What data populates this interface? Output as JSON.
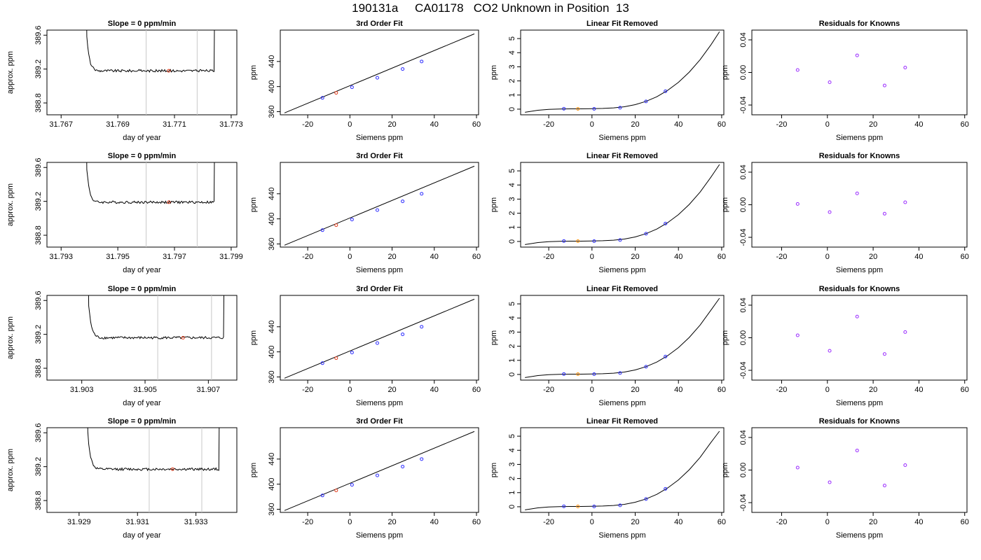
{
  "figure": {
    "title": "190131a     CA01178   CO2 Unknown in Position  13",
    "colors": {
      "known_point": "#2b2bff",
      "unknown_point": "#e03a1a",
      "unknown_point_linfit": "#ff8c00",
      "residual_point": "#9a2bff",
      "trace": "#000000",
      "window_line": "#c8c8c8"
    }
  },
  "chart_data": [
    {
      "row": 1,
      "type": "line",
      "title": "Slope =  0  ppm/min",
      "xlabel": "day of year",
      "ylabel": "approx. ppm",
      "xlim": [
        31.7665,
        31.7732
      ],
      "ylim": [
        388.66,
        389.66
      ],
      "xticks": [
        "31.767",
        "31.769",
        "31.771",
        "31.773"
      ],
      "yticks": [
        "388.8",
        "389.2",
        "389.6"
      ],
      "window": [
        31.77,
        31.7718
      ],
      "mean_point": {
        "x": 31.7708,
        "y": 389.18
      },
      "signal_start": 31.7681,
      "signal_end": 31.7724,
      "baseline": 389.18,
      "noise": 0.015
    },
    {
      "row": 1,
      "type": "line",
      "title": "3rd Order Fit",
      "xlabel": "Siemens ppm",
      "ylabel": "ppm",
      "xlim": [
        -33,
        61
      ],
      "ylim": [
        355,
        490
      ],
      "xticks": [
        "-20",
        "0",
        "20",
        "40",
        "60"
      ],
      "yticks": [
        "360",
        "400",
        "440"
      ],
      "fit_line": {
        "x": [
          -31,
          59
        ],
        "y": [
          358,
          484
        ]
      },
      "knowns": [
        {
          "x": -13,
          "y": 382
        },
        {
          "x": 1,
          "y": 399
        },
        {
          "x": 13,
          "y": 414
        },
        {
          "x": 25,
          "y": 428
        },
        {
          "x": 34,
          "y": 440
        }
      ],
      "unknown": {
        "x": -6.5,
        "y": 390
      }
    },
    {
      "row": 1,
      "type": "line",
      "title": "Linear Fit Removed",
      "xlabel": "Siemens ppm",
      "ylabel": "ppm",
      "xlim": [
        -33,
        61
      ],
      "ylim": [
        -0.4,
        5.6
      ],
      "xticks": [
        "-20",
        "0",
        "20",
        "40",
        "60"
      ],
      "yticks": [
        "0",
        "1",
        "2",
        "3",
        "4",
        "5"
      ],
      "curve": {
        "x": [
          -31,
          -25,
          -20,
          -15,
          -10,
          -5,
          0,
          5,
          10,
          15,
          20,
          25,
          30,
          35,
          40,
          45,
          50,
          55,
          59
        ],
        "y": [
          -0.22,
          -0.08,
          -0.02,
          0.01,
          0.02,
          0.02,
          0.03,
          0.05,
          0.09,
          0.17,
          0.32,
          0.55,
          0.88,
          1.33,
          1.9,
          2.62,
          3.5,
          4.55,
          5.48
        ]
      },
      "knowns": [
        {
          "x": -13,
          "y": 0.03
        },
        {
          "x": 1,
          "y": 0.02
        },
        {
          "x": 13,
          "y": 0.1
        },
        {
          "x": 25,
          "y": 0.55
        },
        {
          "x": 34,
          "y": 1.27
        }
      ],
      "unknown": {
        "x": -6.5,
        "y": 0.02
      }
    },
    {
      "row": 1,
      "type": "scatter",
      "title": "Residuals for Knowns",
      "xlabel": "Siemens ppm",
      "ylabel": "ppm",
      "xlim": [
        -33,
        61
      ],
      "ylim": [
        -0.052,
        0.052
      ],
      "xticks": [
        "-20",
        "0",
        "20",
        "40",
        "60"
      ],
      "yticks": [
        "-0.04",
        "0.00",
        "0.04"
      ],
      "points": [
        {
          "x": -13,
          "y": 0.003
        },
        {
          "x": 1,
          "y": -0.012
        },
        {
          "x": 13,
          "y": 0.021
        },
        {
          "x": 25,
          "y": -0.016
        },
        {
          "x": 34,
          "y": 0.006
        }
      ]
    },
    {
      "row": 2,
      "type": "line",
      "title": "Slope =  0  ppm/min",
      "xlabel": "day of year",
      "ylabel": "approx. ppm",
      "xlim": [
        31.7925,
        31.7992
      ],
      "ylim": [
        388.66,
        389.66
      ],
      "xticks": [
        "31.793",
        "31.795",
        "31.797",
        "31.799"
      ],
      "yticks": [
        "388.8",
        "389.2",
        "389.6"
      ],
      "window": [
        31.796,
        31.7978
      ],
      "mean_point": {
        "x": 31.7968,
        "y": 389.19
      },
      "signal_start": 31.7941,
      "signal_end": 31.7984,
      "baseline": 389.19,
      "noise": 0.015
    },
    {
      "row": 2,
      "type": "line",
      "title": "3rd Order Fit",
      "xlabel": "Siemens ppm",
      "ylabel": "ppm",
      "xlim": [
        -33,
        61
      ],
      "ylim": [
        355,
        490
      ],
      "xticks": [
        "-20",
        "0",
        "20",
        "40",
        "60"
      ],
      "yticks": [
        "360",
        "400",
        "440"
      ],
      "fit_line": {
        "x": [
          -31,
          59
        ],
        "y": [
          358,
          484
        ]
      },
      "knowns": [
        {
          "x": -13,
          "y": 382
        },
        {
          "x": 1,
          "y": 399
        },
        {
          "x": 13,
          "y": 414
        },
        {
          "x": 25,
          "y": 428
        },
        {
          "x": 34,
          "y": 440
        }
      ],
      "unknown": {
        "x": -6.5,
        "y": 390
      }
    },
    {
      "row": 2,
      "type": "line",
      "title": "Linear Fit Removed",
      "xlabel": "Siemens ppm",
      "ylabel": "ppm",
      "xlim": [
        -33,
        61
      ],
      "ylim": [
        -0.4,
        5.6
      ],
      "xticks": [
        "-20",
        "0",
        "20",
        "40",
        "60"
      ],
      "yticks": [
        "0",
        "1",
        "2",
        "3",
        "4",
        "5"
      ],
      "curve": {
        "x": [
          -31,
          -25,
          -20,
          -15,
          -10,
          -5,
          0,
          5,
          10,
          15,
          20,
          25,
          30,
          35,
          40,
          45,
          50,
          55,
          59
        ],
        "y": [
          -0.22,
          -0.08,
          -0.02,
          0.01,
          0.02,
          0.02,
          0.03,
          0.05,
          0.09,
          0.17,
          0.32,
          0.55,
          0.88,
          1.33,
          1.9,
          2.62,
          3.5,
          4.55,
          5.45
        ]
      },
      "knowns": [
        {
          "x": -13,
          "y": 0.03
        },
        {
          "x": 1,
          "y": 0.02
        },
        {
          "x": 13,
          "y": 0.1
        },
        {
          "x": 25,
          "y": 0.55
        },
        {
          "x": 34,
          "y": 1.27
        }
      ],
      "unknown": {
        "x": -6.5,
        "y": 0.02
      }
    },
    {
      "row": 2,
      "type": "scatter",
      "title": "Residuals for Knowns",
      "xlabel": "Siemens ppm",
      "ylabel": "ppm",
      "xlim": [
        -33,
        61
      ],
      "ylim": [
        -0.052,
        0.052
      ],
      "xticks": [
        "-20",
        "0",
        "20",
        "40",
        "60"
      ],
      "yticks": [
        "-0.04",
        "0.00",
        "0.04"
      ],
      "points": [
        {
          "x": -13,
          "y": 0.001
        },
        {
          "x": 1,
          "y": -0.009
        },
        {
          "x": 13,
          "y": 0.014
        },
        {
          "x": 25,
          "y": -0.011
        },
        {
          "x": 34,
          "y": 0.003
        }
      ]
    },
    {
      "row": 3,
      "type": "line",
      "title": "Slope =  0  ppm/min",
      "xlabel": "day of year",
      "ylabel": "approx. ppm",
      "xlim": [
        31.9019,
        31.9079
      ],
      "ylim": [
        388.66,
        389.66
      ],
      "xticks": [
        "31.903",
        "31.905",
        "31.907"
      ],
      "yticks": [
        "388.8",
        "389.2",
        "389.6"
      ],
      "window": [
        31.9054,
        31.9071
      ],
      "mean_point": {
        "x": 31.9062,
        "y": 389.16
      },
      "signal_start": 31.9034,
      "signal_end": 31.9075,
      "baseline": 389.16,
      "noise": 0.015
    },
    {
      "row": 3,
      "type": "line",
      "title": "3rd Order Fit",
      "xlabel": "Siemens ppm",
      "ylabel": "ppm",
      "xlim": [
        -33,
        61
      ],
      "ylim": [
        355,
        490
      ],
      "xticks": [
        "-20",
        "0",
        "20",
        "40",
        "60"
      ],
      "yticks": [
        "360",
        "400",
        "440"
      ],
      "fit_line": {
        "x": [
          -31,
          59
        ],
        "y": [
          358,
          484
        ]
      },
      "knowns": [
        {
          "x": -13,
          "y": 382
        },
        {
          "x": 1,
          "y": 399
        },
        {
          "x": 13,
          "y": 414
        },
        {
          "x": 25,
          "y": 428
        },
        {
          "x": 34,
          "y": 440
        }
      ],
      "unknown": {
        "x": -6.5,
        "y": 390
      }
    },
    {
      "row": 3,
      "type": "line",
      "title": "Linear Fit Removed",
      "xlabel": "Siemens ppm",
      "ylabel": "ppm",
      "xlim": [
        -33,
        61
      ],
      "ylim": [
        -0.4,
        5.6
      ],
      "xticks": [
        "-20",
        "0",
        "20",
        "40",
        "60"
      ],
      "yticks": [
        "0",
        "1",
        "2",
        "3",
        "4",
        "5"
      ],
      "curve": {
        "x": [
          -31,
          -25,
          -20,
          -15,
          -10,
          -5,
          0,
          5,
          10,
          15,
          20,
          25,
          30,
          35,
          40,
          45,
          50,
          55,
          59
        ],
        "y": [
          -0.22,
          -0.08,
          -0.02,
          0.01,
          0.02,
          0.02,
          0.03,
          0.05,
          0.09,
          0.17,
          0.32,
          0.55,
          0.88,
          1.33,
          1.9,
          2.62,
          3.5,
          4.55,
          5.4
        ]
      },
      "knowns": [
        {
          "x": -13,
          "y": 0.03
        },
        {
          "x": 1,
          "y": 0.02
        },
        {
          "x": 13,
          "y": 0.1
        },
        {
          "x": 25,
          "y": 0.55
        },
        {
          "x": 34,
          "y": 1.27
        }
      ],
      "unknown": {
        "x": -6.5,
        "y": 0.02
      }
    },
    {
      "row": 3,
      "type": "scatter",
      "title": "Residuals for Knowns",
      "xlabel": "Siemens ppm",
      "ylabel": "ppm",
      "xlim": [
        -33,
        61
      ],
      "ylim": [
        -0.052,
        0.052
      ],
      "xticks": [
        "-20",
        "0",
        "20",
        "40",
        "60"
      ],
      "yticks": [
        "-0.04",
        "0.00",
        "0.04"
      ],
      "points": [
        {
          "x": -13,
          "y": 0.003
        },
        {
          "x": 1,
          "y": -0.016
        },
        {
          "x": 13,
          "y": 0.026
        },
        {
          "x": 25,
          "y": -0.02
        },
        {
          "x": 34,
          "y": 0.007
        }
      ]
    },
    {
      "row": 4,
      "type": "line",
      "title": "Slope =  0  ppm/min",
      "xlabel": "day of year",
      "ylabel": "approx. ppm",
      "xlim": [
        31.9279,
        31.9344
      ],
      "ylim": [
        388.66,
        389.66
      ],
      "xticks": [
        "31.929",
        "31.931",
        "31.933"
      ],
      "yticks": [
        "388.8",
        "389.2",
        "389.6"
      ],
      "window": [
        31.9314,
        31.9332
      ],
      "mean_point": {
        "x": 31.9322,
        "y": 389.17
      },
      "signal_start": 31.9295,
      "signal_end": 31.9338,
      "baseline": 389.17,
      "noise": 0.015
    },
    {
      "row": 4,
      "type": "line",
      "title": "3rd Order Fit",
      "xlabel": "Siemens ppm",
      "ylabel": "ppm",
      "xlim": [
        -33,
        61
      ],
      "ylim": [
        355,
        490
      ],
      "xticks": [
        "-20",
        "0",
        "20",
        "40",
        "60"
      ],
      "yticks": [
        "360",
        "400",
        "440"
      ],
      "fit_line": {
        "x": [
          -31,
          59
        ],
        "y": [
          358,
          484
        ]
      },
      "knowns": [
        {
          "x": -13,
          "y": 382
        },
        {
          "x": 1,
          "y": 399
        },
        {
          "x": 13,
          "y": 414
        },
        {
          "x": 25,
          "y": 428
        },
        {
          "x": 34,
          "y": 440
        }
      ],
      "unknown": {
        "x": -6.5,
        "y": 390
      }
    },
    {
      "row": 4,
      "type": "line",
      "title": "Linear Fit Removed",
      "xlabel": "Siemens ppm",
      "ylabel": "ppm",
      "xlim": [
        -33,
        61
      ],
      "ylim": [
        -0.4,
        5.6
      ],
      "xticks": [
        "-20",
        "0",
        "20",
        "40",
        "60"
      ],
      "yticks": [
        "0",
        "1",
        "2",
        "3",
        "4",
        "5"
      ],
      "curve": {
        "x": [
          -31,
          -25,
          -20,
          -15,
          -10,
          -5,
          0,
          5,
          10,
          15,
          20,
          25,
          30,
          35,
          40,
          45,
          50,
          55,
          59
        ],
        "y": [
          -0.22,
          -0.08,
          -0.02,
          0.01,
          0.02,
          0.02,
          0.03,
          0.05,
          0.09,
          0.17,
          0.32,
          0.55,
          0.88,
          1.33,
          1.9,
          2.62,
          3.5,
          4.55,
          5.35
        ]
      },
      "knowns": [
        {
          "x": -13,
          "y": 0.03
        },
        {
          "x": 1,
          "y": 0.02
        },
        {
          "x": 13,
          "y": 0.1
        },
        {
          "x": 25,
          "y": 0.55
        },
        {
          "x": 34,
          "y": 1.27
        }
      ],
      "unknown": {
        "x": -6.5,
        "y": 0.02
      }
    },
    {
      "row": 4,
      "type": "scatter",
      "title": "Residuals for Knowns",
      "xlabel": "Siemens ppm",
      "ylabel": "ppm",
      "xlim": [
        -33,
        61
      ],
      "ylim": [
        -0.052,
        0.052
      ],
      "xticks": [
        "-20",
        "0",
        "20",
        "40",
        "60"
      ],
      "yticks": [
        "-0.04",
        "0.00",
        "0.04"
      ],
      "points": [
        {
          "x": -13,
          "y": 0.003
        },
        {
          "x": 1,
          "y": -0.015
        },
        {
          "x": 13,
          "y": 0.024
        },
        {
          "x": 25,
          "y": -0.019
        },
        {
          "x": 34,
          "y": 0.006
        }
      ]
    }
  ]
}
